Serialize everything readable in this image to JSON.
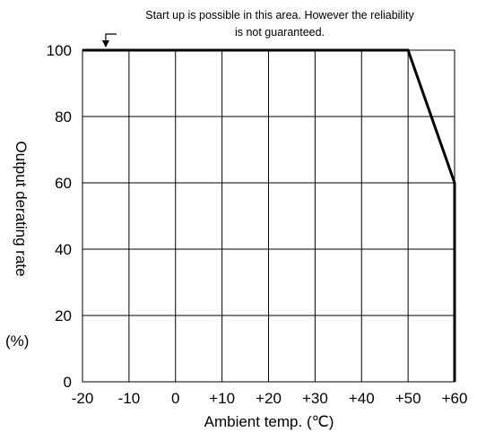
{
  "chart_data": {
    "type": "line",
    "annotation_line1": "Start up is possible in this area. However the reliability",
    "annotation_line2": "is not guaranteed.",
    "xlabel": "Ambient temp. (℃)",
    "ylabel": "Output derating rate",
    "ylabel_unit": "(%)",
    "x_tick_labels": [
      "-20",
      "-10",
      "0",
      "+10",
      "+20",
      "+30",
      "+40",
      "+50",
      "+60"
    ],
    "x_ticks": [
      -20,
      -10,
      0,
      10,
      20,
      30,
      40,
      50,
      60
    ],
    "y_tick_labels": [
      "0",
      "20",
      "40",
      "60",
      "80",
      "100"
    ],
    "y_ticks": [
      0,
      20,
      40,
      60,
      80,
      100
    ],
    "xlim": [
      -20,
      60
    ],
    "ylim": [
      0,
      100
    ],
    "grid": true,
    "series": [
      {
        "x": [
          -20,
          50,
          60,
          60
        ],
        "y": [
          100,
          100,
          60,
          0
        ]
      }
    ],
    "annotation_marker_x": -15
  }
}
